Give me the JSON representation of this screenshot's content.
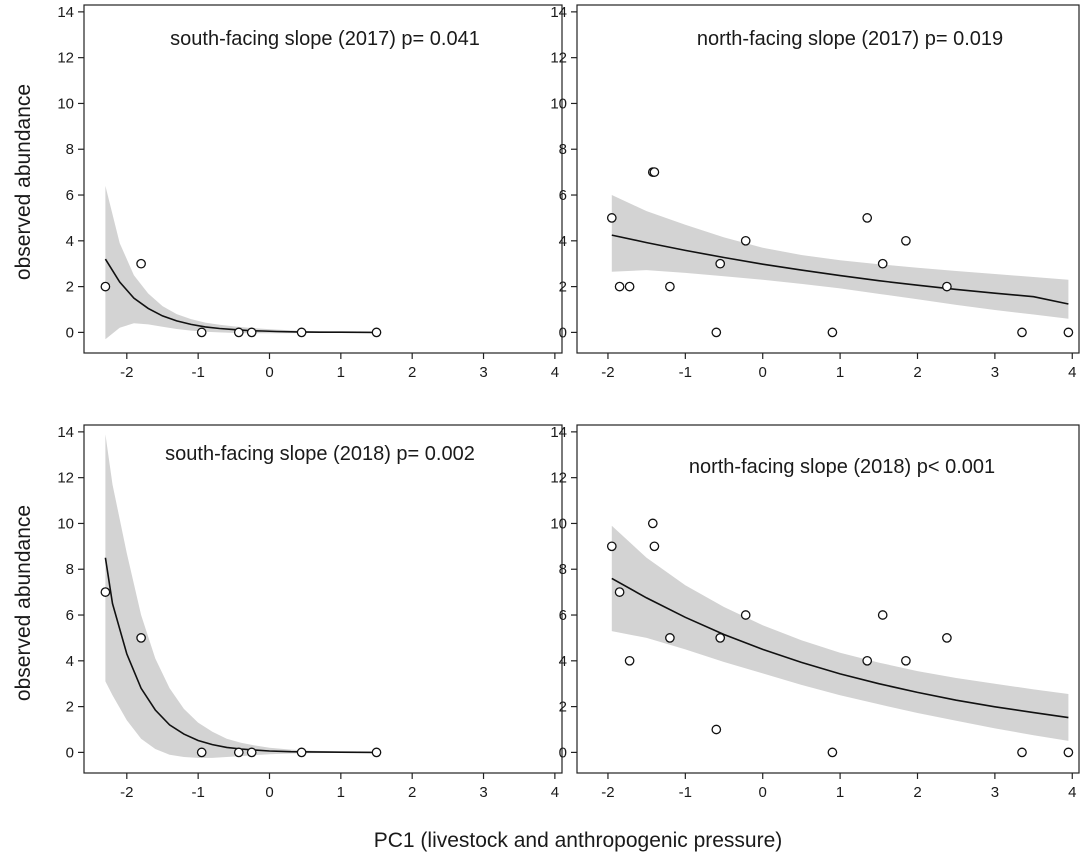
{
  "figure": {
    "xlabel": "PC1 (livestock and anthropogenic pressure)",
    "ylabel": "observed abundance"
  },
  "chart_data": [
    {
      "type": "scatter",
      "title": "south-facing slope (2017) p= 0.041",
      "xlabel": "",
      "ylabel": "observed abundance",
      "xlim": [
        -2.6,
        4.1
      ],
      "ylim": [
        -0.9,
        14.3
      ],
      "xticks": [
        -2,
        -1,
        0,
        1,
        2,
        3,
        4
      ],
      "yticks": [
        0,
        2,
        4,
        6,
        8,
        10,
        12,
        14
      ],
      "points": [
        [
          -2.3,
          2
        ],
        [
          -1.8,
          3
        ],
        [
          -0.95,
          0
        ],
        [
          -0.43,
          0
        ],
        [
          -0.25,
          0
        ],
        [
          0.45,
          0
        ],
        [
          1.5,
          0
        ]
      ],
      "fit": [
        [
          -2.3,
          3.2
        ],
        [
          -2.1,
          2.2
        ],
        [
          -1.9,
          1.5
        ],
        [
          -1.7,
          1.05
        ],
        [
          -1.5,
          0.72
        ],
        [
          -1.3,
          0.5
        ],
        [
          -1.1,
          0.35
        ],
        [
          -0.9,
          0.24
        ],
        [
          -0.7,
          0.17
        ],
        [
          -0.5,
          0.12
        ],
        [
          -0.3,
          0.08
        ],
        [
          -0.1,
          0.06
        ],
        [
          0.1,
          0.04
        ],
        [
          0.4,
          0.02
        ],
        [
          0.7,
          0.01
        ],
        [
          1.0,
          0.01
        ],
        [
          1.5,
          0.0
        ]
      ],
      "ci_upper": [
        [
          -2.3,
          6.4
        ],
        [
          -2.1,
          3.9
        ],
        [
          -1.9,
          2.5
        ],
        [
          -1.7,
          1.7
        ],
        [
          -1.5,
          1.15
        ],
        [
          -1.3,
          0.8
        ],
        [
          -1.1,
          0.58
        ],
        [
          -0.9,
          0.43
        ],
        [
          -0.7,
          0.33
        ],
        [
          -0.5,
          0.26
        ],
        [
          -0.3,
          0.2
        ],
        [
          -0.1,
          0.16
        ],
        [
          0.1,
          0.12
        ],
        [
          0.4,
          0.08
        ],
        [
          0.7,
          0.05
        ],
        [
          1.0,
          0.03
        ],
        [
          1.5,
          0.01
        ]
      ],
      "ci_lower": [
        [
          -2.3,
          -0.3
        ],
        [
          -2.1,
          0.2
        ],
        [
          -1.9,
          0.4
        ],
        [
          -1.7,
          0.35
        ],
        [
          -1.5,
          0.25
        ],
        [
          -1.3,
          0.15
        ],
        [
          -1.1,
          0.08
        ],
        [
          -0.9,
          0.03
        ],
        [
          -0.7,
          0.0
        ],
        [
          -0.5,
          -0.02
        ],
        [
          -0.3,
          -0.04
        ],
        [
          -0.1,
          -0.04
        ],
        [
          0.1,
          -0.04
        ],
        [
          0.4,
          -0.03
        ],
        [
          0.7,
          -0.02
        ],
        [
          1.0,
          -0.01
        ],
        [
          1.5,
          -0.01
        ]
      ],
      "grid": false
    },
    {
      "type": "scatter",
      "title": "north-facing slope (2017) p= 0.019",
      "xlabel": "",
      "ylabel": "",
      "xlim": [
        -2.4,
        4.1
      ],
      "ylim": [
        -0.9,
        14.3
      ],
      "xticks": [
        -2,
        -1,
        0,
        1,
        2,
        3,
        4
      ],
      "yticks": [
        0,
        2,
        4,
        6,
        8,
        10,
        12,
        14
      ],
      "points": [
        [
          -1.95,
          5
        ],
        [
          -1.85,
          2
        ],
        [
          -1.72,
          2
        ],
        [
          -1.42,
          7
        ],
        [
          -1.4,
          7
        ],
        [
          -1.2,
          2
        ],
        [
          -0.6,
          0
        ],
        [
          -0.55,
          3
        ],
        [
          -0.22,
          4
        ],
        [
          0.9,
          0
        ],
        [
          1.35,
          5
        ],
        [
          1.55,
          3
        ],
        [
          1.85,
          4
        ],
        [
          2.38,
          2
        ],
        [
          3.35,
          0
        ],
        [
          3.95,
          0
        ]
      ],
      "fit": [
        [
          -1.95,
          4.25
        ],
        [
          -1.5,
          3.92
        ],
        [
          -1.0,
          3.58
        ],
        [
          -0.5,
          3.27
        ],
        [
          0.0,
          2.98
        ],
        [
          0.5,
          2.72
        ],
        [
          1.0,
          2.48
        ],
        [
          1.5,
          2.26
        ],
        [
          2.0,
          2.06
        ],
        [
          2.5,
          1.88
        ],
        [
          3.0,
          1.71
        ],
        [
          3.5,
          1.56
        ],
        [
          3.95,
          1.24
        ]
      ],
      "ci_upper": [
        [
          -1.95,
          6.0
        ],
        [
          -1.5,
          5.3
        ],
        [
          -1.0,
          4.7
        ],
        [
          -0.5,
          4.15
        ],
        [
          0.0,
          3.7
        ],
        [
          0.5,
          3.38
        ],
        [
          1.0,
          3.15
        ],
        [
          1.5,
          2.98
        ],
        [
          2.0,
          2.82
        ],
        [
          2.5,
          2.68
        ],
        [
          3.0,
          2.55
        ],
        [
          3.5,
          2.42
        ],
        [
          3.95,
          2.3
        ]
      ],
      "ci_lower": [
        [
          -1.95,
          2.65
        ],
        [
          -1.5,
          2.72
        ],
        [
          -1.0,
          2.6
        ],
        [
          -0.5,
          2.45
        ],
        [
          0.0,
          2.3
        ],
        [
          0.5,
          2.12
        ],
        [
          1.0,
          1.92
        ],
        [
          1.5,
          1.68
        ],
        [
          2.0,
          1.45
        ],
        [
          2.5,
          1.2
        ],
        [
          3.0,
          0.98
        ],
        [
          3.5,
          0.78
        ],
        [
          3.95,
          0.6
        ]
      ],
      "grid": false
    },
    {
      "type": "scatter",
      "title": "south-facing slope (2018) p= 0.002",
      "xlabel": "",
      "ylabel": "observed abundance",
      "xlim": [
        -2.6,
        4.1
      ],
      "ylim": [
        -0.9,
        14.3
      ],
      "xticks": [
        -2,
        -1,
        0,
        1,
        2,
        3,
        4
      ],
      "yticks": [
        0,
        2,
        4,
        6,
        8,
        10,
        12,
        14
      ],
      "points": [
        [
          -2.3,
          7
        ],
        [
          -1.8,
          5
        ],
        [
          -0.95,
          0
        ],
        [
          -0.43,
          0
        ],
        [
          -0.25,
          0
        ],
        [
          0.45,
          0
        ],
        [
          1.5,
          0
        ]
      ],
      "fit": [
        [
          -2.3,
          8.5
        ],
        [
          -2.2,
          6.5
        ],
        [
          -2.0,
          4.3
        ],
        [
          -1.8,
          2.8
        ],
        [
          -1.6,
          1.85
        ],
        [
          -1.4,
          1.2
        ],
        [
          -1.2,
          0.8
        ],
        [
          -1.0,
          0.52
        ],
        [
          -0.8,
          0.34
        ],
        [
          -0.6,
          0.22
        ],
        [
          -0.4,
          0.15
        ],
        [
          -0.2,
          0.1
        ],
        [
          0.0,
          0.06
        ],
        [
          0.3,
          0.03
        ],
        [
          0.6,
          0.02
        ],
        [
          1.0,
          0.01
        ],
        [
          1.5,
          0.0
        ]
      ],
      "ci_upper": [
        [
          -2.3,
          13.9
        ],
        [
          -2.2,
          11.7
        ],
        [
          -2.0,
          8.7
        ],
        [
          -1.8,
          6.0
        ],
        [
          -1.6,
          4.1
        ],
        [
          -1.4,
          2.8
        ],
        [
          -1.2,
          1.9
        ],
        [
          -1.0,
          1.3
        ],
        [
          -0.8,
          0.9
        ],
        [
          -0.6,
          0.6
        ],
        [
          -0.4,
          0.42
        ],
        [
          -0.2,
          0.3
        ],
        [
          0.0,
          0.2
        ],
        [
          0.3,
          0.12
        ],
        [
          0.6,
          0.07
        ],
        [
          1.0,
          0.04
        ],
        [
          1.5,
          0.02
        ]
      ],
      "ci_lower": [
        [
          -2.3,
          3.1
        ],
        [
          -2.2,
          2.5
        ],
        [
          -2.0,
          1.4
        ],
        [
          -1.8,
          0.6
        ],
        [
          -1.6,
          0.15
        ],
        [
          -1.4,
          -0.1
        ],
        [
          -1.2,
          -0.2
        ],
        [
          -1.0,
          -0.24
        ],
        [
          -0.8,
          -0.24
        ],
        [
          -0.6,
          -0.2
        ],
        [
          -0.4,
          -0.16
        ],
        [
          -0.2,
          -0.12
        ],
        [
          0.0,
          -0.08
        ],
        [
          0.3,
          -0.05
        ],
        [
          0.6,
          -0.03
        ],
        [
          1.0,
          -0.02
        ],
        [
          1.5,
          -0.01
        ]
      ],
      "grid": false
    },
    {
      "type": "scatter",
      "title": "north-facing slope (2018) p< 0.001",
      "xlabel": "",
      "ylabel": "",
      "xlim": [
        -2.4,
        4.1
      ],
      "ylim": [
        -0.9,
        14.3
      ],
      "xticks": [
        -2,
        -1,
        0,
        1,
        2,
        3,
        4
      ],
      "yticks": [
        0,
        2,
        4,
        6,
        8,
        10,
        12,
        14
      ],
      "points": [
        [
          -1.95,
          9
        ],
        [
          -1.85,
          7
        ],
        [
          -1.72,
          4
        ],
        [
          -1.42,
          10
        ],
        [
          -1.4,
          9
        ],
        [
          -1.2,
          5
        ],
        [
          -0.6,
          1
        ],
        [
          -0.55,
          5
        ],
        [
          -0.22,
          6
        ],
        [
          0.9,
          0
        ],
        [
          1.35,
          4
        ],
        [
          1.55,
          6
        ],
        [
          1.85,
          4
        ],
        [
          2.38,
          5
        ],
        [
          3.35,
          0
        ],
        [
          3.95,
          0
        ]
      ],
      "fit": [
        [
          -1.95,
          7.6
        ],
        [
          -1.5,
          6.75
        ],
        [
          -1.0,
          5.9
        ],
        [
          -0.5,
          5.15
        ],
        [
          0.0,
          4.5
        ],
        [
          0.5,
          3.93
        ],
        [
          1.0,
          3.43
        ],
        [
          1.5,
          3.0
        ],
        [
          2.0,
          2.62
        ],
        [
          2.5,
          2.28
        ],
        [
          3.0,
          1.99
        ],
        [
          3.5,
          1.74
        ],
        [
          3.95,
          1.52
        ]
      ],
      "ci_upper": [
        [
          -1.95,
          9.9
        ],
        [
          -1.5,
          8.5
        ],
        [
          -1.0,
          7.3
        ],
        [
          -0.5,
          6.35
        ],
        [
          0.0,
          5.55
        ],
        [
          0.5,
          4.9
        ],
        [
          1.0,
          4.35
        ],
        [
          1.5,
          3.92
        ],
        [
          2.0,
          3.55
        ],
        [
          2.5,
          3.25
        ],
        [
          3.0,
          3.0
        ],
        [
          3.5,
          2.75
        ],
        [
          3.95,
          2.55
        ]
      ],
      "ci_lower": [
        [
          -1.95,
          5.3
        ],
        [
          -1.5,
          5.0
        ],
        [
          -1.0,
          4.5
        ],
        [
          -0.5,
          3.95
        ],
        [
          0.0,
          3.45
        ],
        [
          0.5,
          2.95
        ],
        [
          1.0,
          2.5
        ],
        [
          1.5,
          2.1
        ],
        [
          2.0,
          1.72
        ],
        [
          2.5,
          1.38
        ],
        [
          3.0,
          1.05
        ],
        [
          3.5,
          0.75
        ],
        [
          3.95,
          0.5
        ]
      ],
      "grid": false
    }
  ]
}
